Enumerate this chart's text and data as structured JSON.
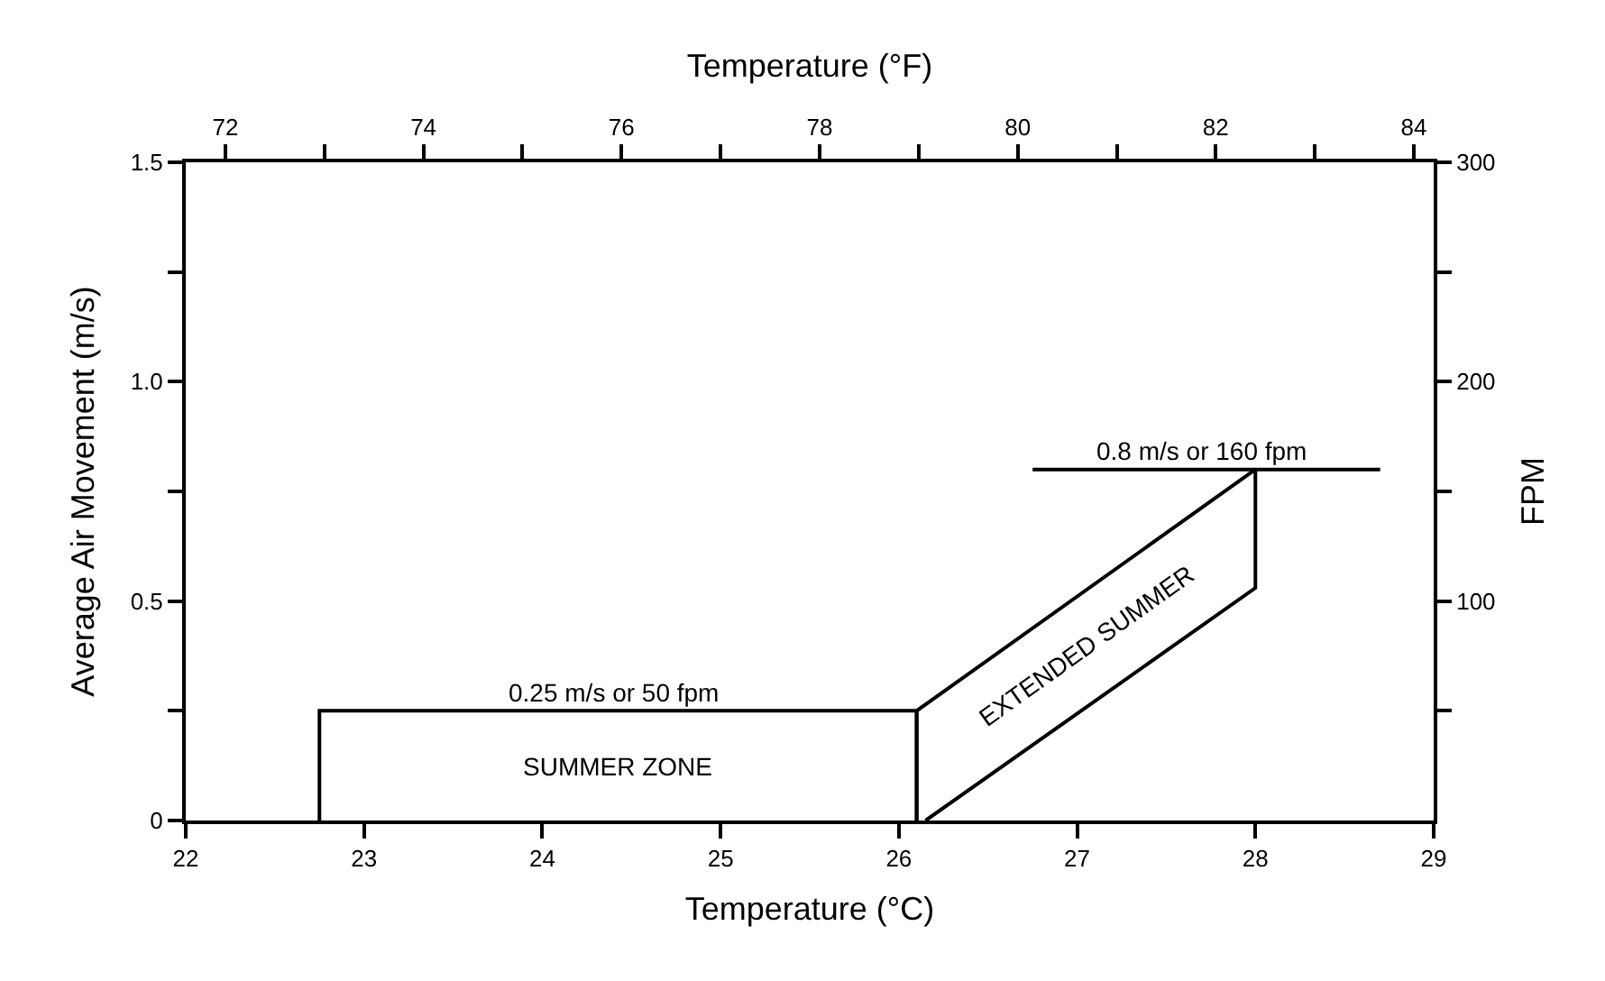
{
  "chart_data": {
    "type": "line",
    "xlabel": "Temperature (°C)",
    "x2label": "Temperature (°F)",
    "ylabel": "Average Air Movement (m/s)",
    "y2label": "FPM",
    "xlim": [
      22,
      29
    ],
    "xticks": [
      22,
      23,
      24,
      25,
      26,
      27,
      28,
      29
    ],
    "x2lim": [
      71.6,
      84.2
    ],
    "x2ticks": [
      72,
      {
        "value": 73,
        "label": null
      },
      74,
      {
        "value": 75,
        "label": null
      },
      76,
      {
        "value": 77,
        "label": null
      },
      78,
      {
        "value": 79,
        "label": null
      },
      80,
      {
        "value": 81,
        "label": null
      },
      82,
      {
        "value": 83,
        "label": null
      },
      84
    ],
    "ylim": [
      0,
      1.5
    ],
    "yticks": [
      0,
      {
        "value": 0.25,
        "label": null
      },
      0.5,
      {
        "value": 0.75,
        "label": null
      },
      {
        "value": 1,
        "label": "1.0"
      },
      {
        "value": 1.25,
        "label": null
      },
      1.5
    ],
    "y2lim": [
      0,
      300
    ],
    "y2ticks": [
      {
        "value": 50,
        "label": null
      },
      100,
      {
        "value": 150,
        "label": null
      },
      200,
      {
        "value": 250,
        "label": null
      },
      300
    ],
    "series": [
      {
        "color": "#000000",
        "x": [
          22.75,
          22.75,
          26.1,
          26.1
        ],
        "values": [
          0,
          0.25,
          0.25,
          0
        ]
      },
      {
        "color": "#000000",
        "x": [
          26.1,
          26.1,
          28,
          28,
          26.15
        ],
        "values": [
          0,
          0.25,
          0.8,
          0.53,
          0
        ]
      },
      {
        "color": "#000000",
        "x": [
          26.75,
          28.7
        ],
        "values": [
          0.8,
          0.8
        ]
      }
    ],
    "annotations": [
      {
        "text": "0.25 m/s or 50 fpm",
        "x": 24.4,
        "y": 0.25
      },
      "SUMMER ZONE",
      {
        "text": "0.8 m/s or 160 fpm",
        "x": 27.7,
        "y": 0.8
      },
      "EXTENDED SUMMER"
    ],
    "marker": "none",
    "line_style": "solid"
  }
}
